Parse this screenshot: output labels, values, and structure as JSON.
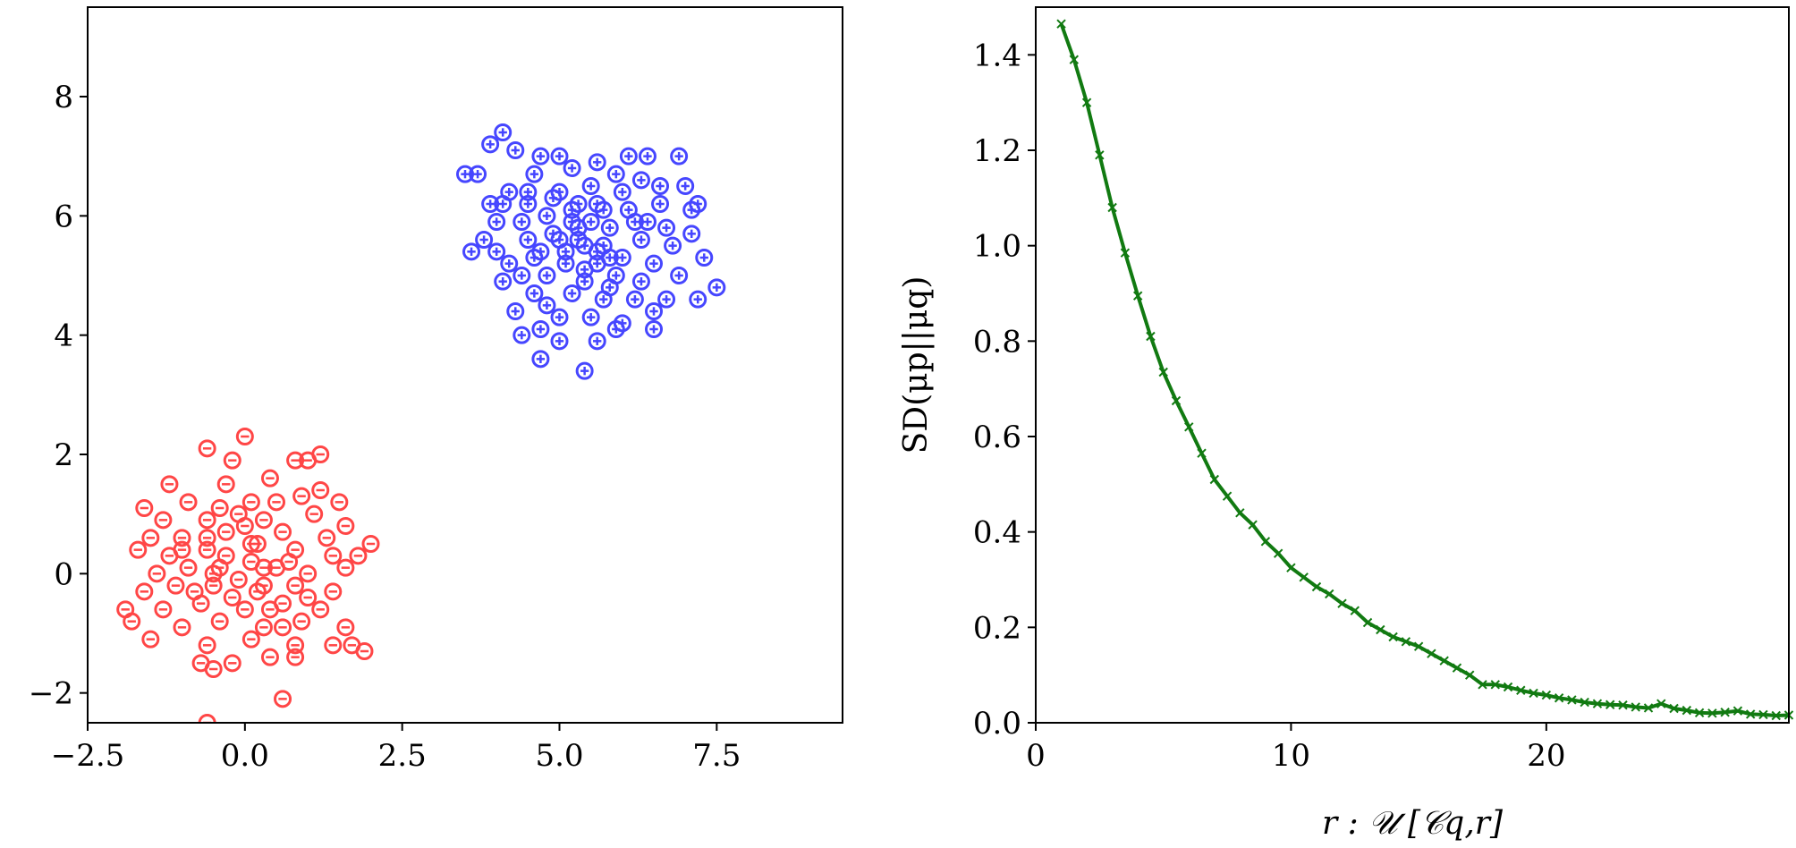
{
  "chart_data": [
    {
      "type": "scatter",
      "title": "",
      "xlabel": "",
      "ylabel": "",
      "xlim": [
        -2.5,
        9.5
      ],
      "ylim": [
        -2.5,
        9.5
      ],
      "xticks": [
        -2.5,
        0.0,
        2.5,
        5.0,
        7.5
      ],
      "xtick_labels": [
        "−2.5",
        "0.0",
        "2.5",
        "5.0",
        "7.5"
      ],
      "yticks": [
        -2,
        0,
        2,
        4,
        6,
        8
      ],
      "ytick_labels": [
        "−2",
        "0",
        "2",
        "4",
        "6",
        "8"
      ],
      "grid": false,
      "legend": "none",
      "series": [
        {
          "marker": "circle-plus",
          "color": "#0000ff",
          "center": [
            5.4,
            5.6
          ],
          "points": [
            [
              4.1,
              7.4
            ],
            [
              4.3,
              7.1
            ],
            [
              3.9,
              7.2
            ],
            [
              4.7,
              7.0
            ],
            [
              5.0,
              7.0
            ],
            [
              5.6,
              6.9
            ],
            [
              6.1,
              7.0
            ],
            [
              6.4,
              7.0
            ],
            [
              6.9,
              7.0
            ],
            [
              3.7,
              6.7
            ],
            [
              3.5,
              6.7
            ],
            [
              4.6,
              6.7
            ],
            [
              5.2,
              6.8
            ],
            [
              5.9,
              6.7
            ],
            [
              6.3,
              6.6
            ],
            [
              7.0,
              6.5
            ],
            [
              4.2,
              6.4
            ],
            [
              4.5,
              6.2
            ],
            [
              5.0,
              6.4
            ],
            [
              5.5,
              6.5
            ],
            [
              6.0,
              6.4
            ],
            [
              6.6,
              6.2
            ],
            [
              7.1,
              6.1
            ],
            [
              7.2,
              6.2
            ],
            [
              4.1,
              6.2
            ],
            [
              4.0,
              5.9
            ],
            [
              4.4,
              5.9
            ],
            [
              4.8,
              6.0
            ],
            [
              5.2,
              6.1
            ],
            [
              5.7,
              6.1
            ],
            [
              6.2,
              5.9
            ],
            [
              6.7,
              5.8
            ],
            [
              7.1,
              5.7
            ],
            [
              3.8,
              5.6
            ],
            [
              4.0,
              5.4
            ],
            [
              4.5,
              5.6
            ],
            [
              4.9,
              5.7
            ],
            [
              5.3,
              5.8
            ],
            [
              5.8,
              5.8
            ],
            [
              6.3,
              5.6
            ],
            [
              6.8,
              5.5
            ],
            [
              3.6,
              5.4
            ],
            [
              4.2,
              5.2
            ],
            [
              4.6,
              5.3
            ],
            [
              5.1,
              5.4
            ],
            [
              5.6,
              5.4
            ],
            [
              6.0,
              5.3
            ],
            [
              6.5,
              5.2
            ],
            [
              4.4,
              5.0
            ],
            [
              4.8,
              5.0
            ],
            [
              5.4,
              5.1
            ],
            [
              5.9,
              5.0
            ],
            [
              6.3,
              4.9
            ],
            [
              6.9,
              5.0
            ],
            [
              7.5,
              4.8
            ],
            [
              4.1,
              4.9
            ],
            [
              4.6,
              4.7
            ],
            [
              5.2,
              4.7
            ],
            [
              5.7,
              4.6
            ],
            [
              6.2,
              4.6
            ],
            [
              6.7,
              4.6
            ],
            [
              4.3,
              4.4
            ],
            [
              5.0,
              4.3
            ],
            [
              5.5,
              4.3
            ],
            [
              6.0,
              4.2
            ],
            [
              6.5,
              4.4
            ],
            [
              7.2,
              4.6
            ],
            [
              4.7,
              4.1
            ],
            [
              5.9,
              4.1
            ],
            [
              5.6,
              3.9
            ],
            [
              5.0,
              3.9
            ],
            [
              4.7,
              3.6
            ],
            [
              5.4,
              3.4
            ],
            [
              5.3,
              5.6
            ],
            [
              5.5,
              5.9
            ],
            [
              5.1,
              5.2
            ],
            [
              5.7,
              5.5
            ],
            [
              5.2,
              5.9
            ],
            [
              5.6,
              5.2
            ],
            [
              5.4,
              5.5
            ],
            [
              5.0,
              5.6
            ],
            [
              5.8,
              5.3
            ],
            [
              5.3,
              6.2
            ],
            [
              4.9,
              6.3
            ],
            [
              5.6,
              6.2
            ],
            [
              6.1,
              6.1
            ],
            [
              4.7,
              5.4
            ],
            [
              5.4,
              4.9
            ],
            [
              6.4,
              5.9
            ],
            [
              4.5,
              6.4
            ],
            [
              6.6,
              6.5
            ],
            [
              3.9,
              6.2
            ],
            [
              7.3,
              5.3
            ],
            [
              4.8,
              4.5
            ],
            [
              5.8,
              4.8
            ],
            [
              6.5,
              4.1
            ],
            [
              4.4,
              4.0
            ]
          ]
        },
        {
          "marker": "circle-minus",
          "color": "#ff0000",
          "center": [
            0.0,
            0.0
          ],
          "points": [
            [
              0.0,
              2.3
            ],
            [
              -0.6,
              2.1
            ],
            [
              -0.2,
              1.9
            ],
            [
              0.8,
              1.9
            ],
            [
              1.2,
              2.0
            ],
            [
              1.0,
              1.9
            ],
            [
              -1.2,
              1.5
            ],
            [
              -0.3,
              1.5
            ],
            [
              0.4,
              1.6
            ],
            [
              1.2,
              1.4
            ],
            [
              -1.6,
              1.1
            ],
            [
              -0.9,
              1.2
            ],
            [
              -0.4,
              1.1
            ],
            [
              0.1,
              1.2
            ],
            [
              0.5,
              1.2
            ],
            [
              0.9,
              1.3
            ],
            [
              1.5,
              1.2
            ],
            [
              -1.3,
              0.9
            ],
            [
              -0.6,
              0.9
            ],
            [
              0.3,
              0.9
            ],
            [
              1.1,
              1.0
            ],
            [
              1.6,
              0.8
            ],
            [
              -1.5,
              0.6
            ],
            [
              -1.0,
              0.6
            ],
            [
              -0.3,
              0.7
            ],
            [
              0.6,
              0.7
            ],
            [
              1.3,
              0.6
            ],
            [
              2.0,
              0.5
            ],
            [
              -1.7,
              0.4
            ],
            [
              -1.2,
              0.3
            ],
            [
              -0.6,
              0.4
            ],
            [
              0.1,
              0.5
            ],
            [
              0.8,
              0.4
            ],
            [
              1.4,
              0.3
            ],
            [
              1.8,
              0.3
            ],
            [
              -1.4,
              0.0
            ],
            [
              -0.9,
              0.1
            ],
            [
              -0.4,
              0.1
            ],
            [
              0.3,
              0.1
            ],
            [
              1.0,
              0.0
            ],
            [
              1.6,
              0.1
            ],
            [
              -1.6,
              -0.3
            ],
            [
              -1.1,
              -0.2
            ],
            [
              -0.5,
              -0.2
            ],
            [
              0.2,
              -0.3
            ],
            [
              0.8,
              -0.2
            ],
            [
              1.4,
              -0.3
            ],
            [
              -1.9,
              -0.6
            ],
            [
              -1.3,
              -0.6
            ],
            [
              -0.7,
              -0.5
            ],
            [
              0.0,
              -0.6
            ],
            [
              0.6,
              -0.5
            ],
            [
              1.2,
              -0.6
            ],
            [
              -1.8,
              -0.8
            ],
            [
              -1.0,
              -0.9
            ],
            [
              -0.4,
              -0.8
            ],
            [
              0.3,
              -0.9
            ],
            [
              0.9,
              -0.8
            ],
            [
              1.6,
              -0.9
            ],
            [
              -1.5,
              -1.1
            ],
            [
              -0.6,
              -1.2
            ],
            [
              0.1,
              -1.1
            ],
            [
              0.8,
              -1.2
            ],
            [
              1.4,
              -1.2
            ],
            [
              1.9,
              -1.3
            ],
            [
              1.7,
              -1.2
            ],
            [
              -0.7,
              -1.5
            ],
            [
              -0.2,
              -1.5
            ],
            [
              0.4,
              -1.4
            ],
            [
              0.8,
              -1.4
            ],
            [
              -0.5,
              -1.6
            ],
            [
              0.6,
              -2.1
            ],
            [
              -0.6,
              -2.5
            ],
            [
              0.1,
              0.2
            ],
            [
              -0.1,
              -0.1
            ],
            [
              0.3,
              -0.2
            ],
            [
              -0.3,
              0.3
            ],
            [
              0.2,
              0.5
            ],
            [
              -0.2,
              -0.4
            ],
            [
              0.5,
              0.1
            ],
            [
              -0.5,
              0.0
            ],
            [
              0.0,
              0.8
            ],
            [
              0.4,
              -0.6
            ],
            [
              -0.8,
              -0.3
            ],
            [
              0.7,
              0.2
            ],
            [
              -0.1,
              1.0
            ],
            [
              1.0,
              -0.4
            ],
            [
              -1.0,
              0.4
            ],
            [
              0.6,
              -0.9
            ],
            [
              -0.6,
              0.6
            ]
          ]
        }
      ]
    },
    {
      "type": "line",
      "title": "",
      "xlabel": "r : 𝒰 [𝒞q,r]",
      "ylabel": "SD(μp||μq)",
      "xlim": [
        0,
        29.5
      ],
      "ylim": [
        0,
        1.5
      ],
      "xticks": [
        0,
        10,
        20
      ],
      "xtick_labels": [
        "0",
        "10",
        "20"
      ],
      "yticks": [
        0.0,
        0.2,
        0.4,
        0.6,
        0.8,
        1.0,
        1.2,
        1.4
      ],
      "ytick_labels": [
        "0.0",
        "0.2",
        "0.4",
        "0.6",
        "0.8",
        "1.0",
        "1.2",
        "1.4"
      ],
      "grid": false,
      "legend": "none",
      "series": [
        {
          "color": "#117a11",
          "marker": "x",
          "x": [
            1.0,
            1.5,
            2.0,
            2.5,
            3.0,
            3.5,
            4.0,
            4.5,
            5.0,
            5.5,
            6.0,
            6.5,
            7.0,
            7.5,
            8.0,
            8.5,
            9.0,
            9.5,
            10.0,
            10.5,
            11.0,
            11.5,
            12.0,
            12.5,
            13.0,
            13.5,
            14.0,
            14.5,
            15.0,
            15.5,
            16.0,
            16.5,
            17.0,
            17.5,
            18.0,
            18.5,
            19.0,
            19.5,
            20.0,
            20.5,
            21.0,
            21.5,
            22.0,
            22.5,
            23.0,
            23.5,
            24.0,
            24.5,
            25.0,
            25.5,
            26.0,
            26.5,
            27.0,
            27.5,
            28.0,
            28.5,
            29.0,
            29.5
          ],
          "y": [
            1.465,
            1.39,
            1.3,
            1.19,
            1.08,
            0.985,
            0.895,
            0.81,
            0.735,
            0.675,
            0.62,
            0.565,
            0.51,
            0.475,
            0.44,
            0.415,
            0.38,
            0.355,
            0.325,
            0.305,
            0.285,
            0.27,
            0.25,
            0.235,
            0.21,
            0.195,
            0.18,
            0.17,
            0.16,
            0.145,
            0.13,
            0.115,
            0.1,
            0.08,
            0.08,
            0.075,
            0.068,
            0.062,
            0.058,
            0.052,
            0.048,
            0.043,
            0.04,
            0.038,
            0.037,
            0.033,
            0.031,
            0.04,
            0.03,
            0.026,
            0.021,
            0.02,
            0.022,
            0.025,
            0.018,
            0.017,
            0.015,
            0.016
          ]
        }
      ]
    }
  ]
}
